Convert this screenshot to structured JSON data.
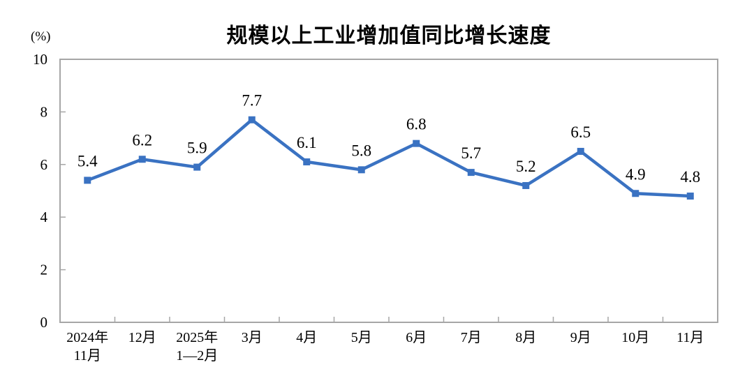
{
  "chart_data": {
    "type": "line",
    "title": "规模以上工业增加值同比增长速度",
    "unit_label": "(%)",
    "categories": [
      [
        "2024年",
        "11月"
      ],
      [
        "12月"
      ],
      [
        "2025年",
        "1—2月"
      ],
      [
        "3月"
      ],
      [
        "4月"
      ],
      [
        "5月"
      ],
      [
        "6月"
      ],
      [
        "7月"
      ],
      [
        "8月"
      ],
      [
        "9月"
      ],
      [
        "10月"
      ],
      [
        "11月"
      ]
    ],
    "values": [
      5.4,
      6.2,
      5.9,
      7.7,
      6.1,
      5.8,
      6.8,
      5.7,
      5.2,
      6.5,
      4.9,
      4.8
    ],
    "data_labels": [
      "5.4",
      "6.2",
      "5.9",
      "7.7",
      "6.1",
      "5.8",
      "6.8",
      "5.7",
      "5.2",
      "6.5",
      "4.9",
      "4.8"
    ],
    "ylim": [
      0,
      10
    ],
    "y_ticks": [
      0,
      2,
      4,
      6,
      8,
      10
    ],
    "grid": false,
    "legend": "none",
    "line_color": "#3A72C2",
    "axis_color": "#A6A6A6",
    "text_color": "#000000",
    "marker": "square"
  }
}
